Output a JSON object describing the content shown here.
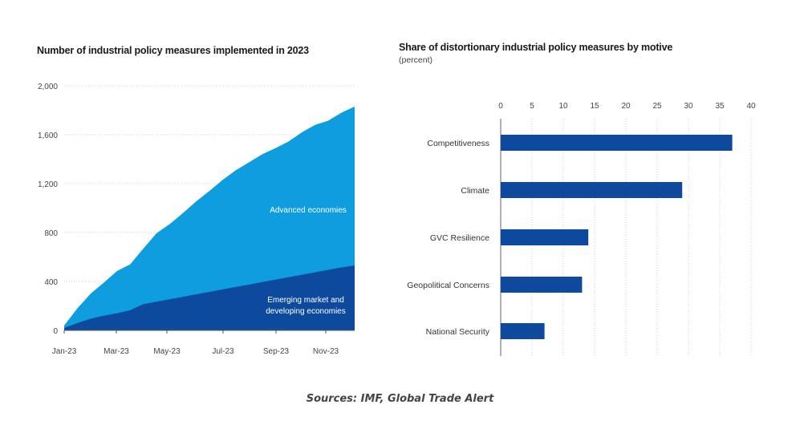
{
  "chart_data": [
    {
      "type": "area",
      "title": "Number of industrial policy measures implemented in 2023",
      "x_ticks": [
        "Jan-23",
        "Mar-23",
        "May-23",
        "Jul-23",
        "Sep-23",
        "Nov-23"
      ],
      "y_ticks": [
        "0",
        "400",
        "800",
        "1,200",
        "1,600",
        "2,000"
      ],
      "ylim": [
        0,
        2000
      ],
      "stacked": true,
      "x": [
        "Jan-23",
        "Jan-23b",
        "Feb-23",
        "Feb-23b",
        "Mar-23",
        "Mar-23b",
        "Apr-23",
        "Apr-23b",
        "May-23",
        "May-23b",
        "Jun-23",
        "Jun-23b",
        "Jul-23",
        "Jul-23b",
        "Aug-23",
        "Aug-23b",
        "Sep-23",
        "Sep-23b",
        "Oct-23",
        "Oct-23b",
        "Nov-23",
        "Nov-23b",
        "Dec-23"
      ],
      "series": [
        {
          "name": "Emerging market and developing economies",
          "color": "#0d4a9e",
          "values": [
            20,
            60,
            95,
            120,
            140,
            165,
            215,
            235,
            255,
            275,
            295,
            315,
            335,
            355,
            375,
            395,
            415,
            435,
            455,
            475,
            495,
            515,
            530
          ]
        },
        {
          "name": "Advanced economies",
          "color": "#0e9ee0",
          "values": [
            20,
            120,
            205,
            270,
            345,
            375,
            455,
            560,
            615,
            685,
            760,
            825,
            895,
            955,
            1000,
            1045,
            1075,
            1110,
            1165,
            1205,
            1220,
            1265,
            1300
          ]
        }
      ],
      "annotations": [
        "Advanced economies",
        "Emerging market and developing economies"
      ]
    },
    {
      "type": "bar",
      "orientation": "horizontal",
      "title": "Share of distortionary industrial policy measures by motive",
      "subtitle": "(percent)",
      "categories": [
        "Competitiveness",
        "Climate",
        "GVC Resilience",
        "Geopolitical Concerns",
        "National Security"
      ],
      "values": [
        37,
        29,
        14,
        13,
        7
      ],
      "x_ticks": [
        "0",
        "5",
        "10",
        "15",
        "20",
        "25",
        "30",
        "35",
        "40"
      ],
      "xlim": [
        0,
        40
      ],
      "color": "#0d4a9e"
    }
  ],
  "footer": {
    "source": "Sources: IMF, Global Trade Alert"
  }
}
